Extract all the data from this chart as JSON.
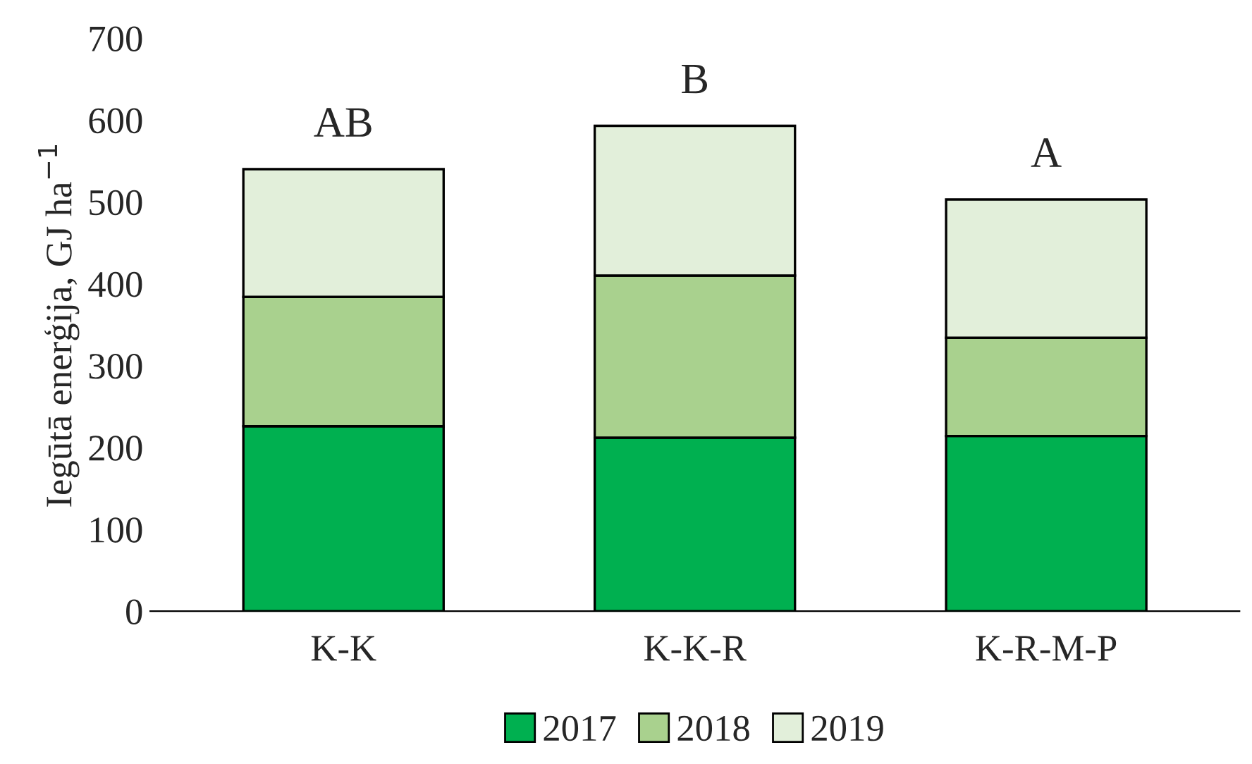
{
  "chart_data": {
    "type": "bar",
    "stacked": true,
    "ylabel": "Iegūtā enerģija, GJ ha$^{−1}$",
    "categories": [
      "K-K",
      "K-K-R",
      "K-R-M-P"
    ],
    "series": [
      {
        "name": "2017",
        "color": "#00b050",
        "values": [
          226,
          212,
          214
        ]
      },
      {
        "name": "2018",
        "color": "#a9d18e",
        "values": [
          158,
          198,
          120
        ]
      },
      {
        "name": "2019",
        "color": "#e2efda",
        "values": [
          156,
          183,
          169
        ]
      }
    ],
    "annotations": [
      "AB",
      "B",
      "A"
    ],
    "ylim": [
      0,
      700
    ],
    "yticks": [
      0,
      100,
      200,
      300,
      400,
      500,
      600,
      700
    ],
    "grid": false,
    "legend": "bottom"
  }
}
